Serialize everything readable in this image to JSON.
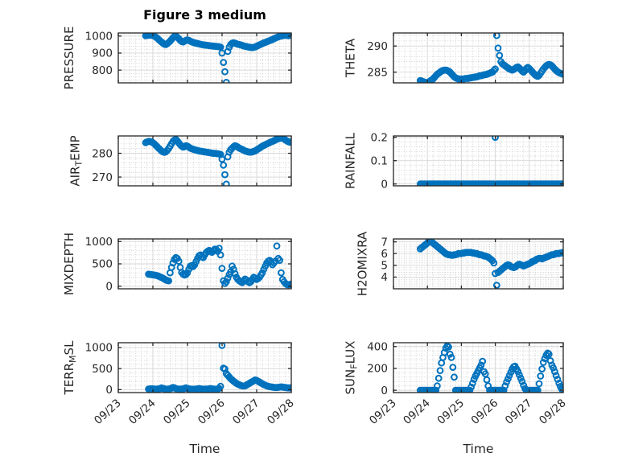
{
  "figure": {
    "background": "#ffffff",
    "marker_color": "#0072BD",
    "axis_color": "#262626",
    "major_grid_color": "#d6d6d6",
    "minor_grid_color": "#c6c6c6",
    "text_color": "#262626"
  },
  "chart_data": {
    "type": "scatter",
    "title": "Figure 3 medium",
    "xlabel": "Time",
    "marker": "o",
    "grid": true,
    "minor_grid": true,
    "x_axis": {
      "start_day": 0.79,
      "step_days": 0.0416667,
      "xlim": [
        0,
        5
      ],
      "ticks": [
        0,
        1,
        2,
        3,
        4,
        5
      ],
      "tick_labels": [
        "09/23",
        "09/24",
        "09/25",
        "09/26",
        "09/27",
        "09/28"
      ],
      "minor_divisions": 6
    },
    "plots": [
      {
        "id": "pressure",
        "ylabel_parts": [
          {
            "text": "PRESSURE"
          }
        ],
        "yticks": [
          800,
          900,
          1000
        ],
        "ylim": [
          725,
          1018
        ],
        "values": [
          1002,
          1004,
          1005,
          1006,
          1005,
          1004,
          1000,
          995,
          988,
          980,
          972,
          965,
          958,
          952,
          950,
          955,
          962,
          970,
          980,
          990,
          998,
          1000,
          993,
          985,
          975,
          968,
          965,
          970,
          975,
          978,
          975,
          970,
          966,
          963,
          960,
          958,
          956,
          954,
          952,
          950,
          948,
          947,
          946,
          945,
          944,
          943,
          942,
          941,
          940,
          939,
          938,
          937,
          935,
          900,
          845,
          790,
          728,
          910,
          935,
          950,
          958,
          960,
          958,
          955,
          952,
          950,
          948,
          945,
          942,
          940,
          938,
          936,
          935,
          933,
          932,
          934,
          936,
          940,
          944,
          948,
          952,
          956,
          960,
          963,
          966,
          970,
          973,
          976,
          980,
          984,
          988,
          992,
          995,
          998,
          1000,
          1002,
          1004,
          1005,
          1004,
          1002,
          1004,
          1006
        ]
      },
      {
        "id": "theta",
        "ylabel_parts": [
          {
            "text": "THETA"
          }
        ],
        "yticks": [
          285,
          290
        ],
        "ylim": [
          282.95,
          292.5
        ],
        "values": [
          283.4,
          283.3,
          283.2,
          283.1,
          283.0,
          283.0,
          283.1,
          283.3,
          283.5,
          283.7,
          284.0,
          284.3,
          284.6,
          284.8,
          285.0,
          285.2,
          285.3,
          285.4,
          285.4,
          285.3,
          285.2,
          285.0,
          284.7,
          284.4,
          284.1,
          283.9,
          283.8,
          283.7,
          283.7,
          283.7,
          283.7,
          283.7,
          283.8,
          283.8,
          283.8,
          283.9,
          283.9,
          284.0,
          284.0,
          284.1,
          284.1,
          284.2,
          284.3,
          284.3,
          284.4,
          284.5,
          284.5,
          284.6,
          284.7,
          284.8,
          284.9,
          285.0,
          285.3,
          285.6,
          292.0,
          289.6,
          288.2,
          287.0,
          286.6,
          286.4,
          286.2,
          286.0,
          285.8,
          285.6,
          285.5,
          285.4,
          285.5,
          285.7,
          285.9,
          286.0,
          285.8,
          285.5,
          285.2,
          285.0,
          285.3,
          285.7,
          285.9,
          285.7,
          285.4,
          285.1,
          284.8,
          284.5,
          284.3,
          284.2,
          284.4,
          284.8,
          285.2,
          285.6,
          285.9,
          286.2,
          286.4,
          286.5,
          286.4,
          286.2,
          285.9,
          285.6,
          285.3,
          285.1,
          284.9,
          284.8,
          284.7,
          284.6
        ]
      },
      {
        "id": "air-temp",
        "ylabel_parts": [
          {
            "text": "AIR"
          },
          {
            "text": "T",
            "sub": true
          },
          {
            "text": "EMP"
          }
        ],
        "yticks": [
          270,
          280
        ],
        "ylim": [
          266.3,
          287.3
        ],
        "values": [
          284.5,
          284.8,
          285.0,
          285.0,
          284.8,
          284.5,
          284.0,
          283.4,
          282.8,
          282.2,
          281.6,
          281.0,
          280.6,
          280.4,
          280.6,
          281.2,
          282.0,
          283.0,
          284.0,
          285.0,
          285.6,
          285.8,
          285.2,
          284.4,
          283.6,
          283.0,
          282.6,
          282.8,
          283.2,
          283.0,
          282.6,
          282.2,
          281.9,
          281.7,
          281.5,
          281.3,
          281.2,
          281.0,
          280.9,
          280.8,
          280.7,
          280.6,
          280.5,
          280.4,
          280.3,
          280.2,
          280.1,
          280.0,
          280.0,
          279.9,
          279.8,
          279.7,
          279.5,
          277.5,
          275.0,
          271.0,
          267.0,
          278.5,
          280.5,
          281.5,
          282.2,
          282.8,
          283.2,
          283.0,
          282.6,
          282.2,
          281.9,
          281.6,
          281.3,
          281.0,
          280.8,
          280.6,
          280.5,
          280.5,
          280.6,
          280.8,
          281.0,
          281.4,
          281.8,
          282.2,
          282.6,
          283.0,
          283.3,
          283.6,
          283.9,
          284.2,
          284.5,
          284.8,
          285.0,
          285.3,
          285.6,
          285.9,
          286.1,
          286.3,
          286.4,
          286.3,
          286.0,
          285.6,
          285.2,
          284.9,
          284.7,
          284.6
        ]
      },
      {
        "id": "rainfall",
        "ylabel_parts": [
          {
            "text": "RAINFALL"
          }
        ],
        "yticks": [
          0,
          0.1,
          0.2
        ],
        "ylim": [
          -0.008,
          0.206
        ],
        "values": [
          0,
          0,
          0,
          0,
          0,
          0,
          0,
          0,
          0,
          0,
          0,
          0,
          0,
          0,
          0,
          0,
          0,
          0,
          0,
          0,
          0,
          0,
          0,
          0,
          0,
          0,
          0,
          0,
          0,
          0,
          0,
          0,
          0,
          0,
          0,
          0,
          0,
          0,
          0,
          0,
          0,
          0,
          0,
          0,
          0,
          0,
          0,
          0,
          0,
          0,
          0,
          0,
          0,
          0.2,
          0,
          0,
          0,
          0,
          0,
          0,
          0,
          0,
          0,
          0,
          0,
          0,
          0,
          0,
          0,
          0,
          0,
          0,
          0,
          0,
          0,
          0,
          0,
          0,
          0,
          0,
          0,
          0,
          0,
          0,
          0,
          0,
          0,
          0,
          0,
          0,
          0,
          0,
          0,
          0,
          0,
          0,
          0,
          0,
          0,
          0,
          0,
          0
        ]
      },
      {
        "id": "mixdepth",
        "ylabel_parts": [
          {
            "text": "MIXDEPTH"
          }
        ],
        "yticks": [
          0,
          500,
          1000
        ],
        "ylim": [
          -58,
          1058
        ],
        "values": [
          null,
          null,
          270,
          265,
          260,
          255,
          250,
          245,
          235,
          225,
          210,
          195,
          180,
          160,
          140,
          130,
          120,
          300,
          420,
          520,
          600,
          640,
          620,
          560,
          420,
          310,
          270,
          250,
          260,
          300,
          380,
          450,
          460,
          440,
          480,
          550,
          620,
          680,
          700,
          660,
          640,
          700,
          750,
          780,
          800,
          780,
          760,
          800,
          830,
          820,
          780,
          850,
          700,
          400,
          120,
          60,
          100,
          180,
          260,
          320,
          450,
          380,
          280,
          200,
          150,
          120,
          100,
          80,
          120,
          160,
          140,
          100,
          80,
          100,
          150,
          200,
          180,
          150,
          170,
          200,
          250,
          300,
          380,
          450,
          520,
          560,
          580,
          540,
          480,
          520,
          560,
          900,
          620,
          580,
          300,
          150,
          100,
          60,
          40,
          30,
          40,
          50
        ]
      },
      {
        "id": "h2omixra",
        "ylabel_parts": [
          {
            "text": "H2OMIXRA"
          }
        ],
        "yticks": [
          4,
          5,
          6,
          7
        ],
        "ylim": [
          3.0,
          7.25
        ],
        "values": [
          6.4,
          6.5,
          6.6,
          6.7,
          6.8,
          6.9,
          7.0,
          7.1,
          7.0,
          6.9,
          6.8,
          6.7,
          6.6,
          6.5,
          6.4,
          6.3,
          6.2,
          6.1,
          6.0,
          5.95,
          5.9,
          5.9,
          5.85,
          5.85,
          5.9,
          5.9,
          5.95,
          6.0,
          6.0,
          6.0,
          6.05,
          6.05,
          6.1,
          6.1,
          6.1,
          6.1,
          6.1,
          6.05,
          6.05,
          6.0,
          6.0,
          5.95,
          5.9,
          5.9,
          5.85,
          5.8,
          5.8,
          5.75,
          5.7,
          5.6,
          5.5,
          5.4,
          5.2,
          4.3,
          3.3,
          4.4,
          4.5,
          4.6,
          4.7,
          4.8,
          4.9,
          5.0,
          5.05,
          5.0,
          4.9,
          4.85,
          4.8,
          4.85,
          4.95,
          5.05,
          5.1,
          5.05,
          5.0,
          4.95,
          5.0,
          5.05,
          5.1,
          5.15,
          5.2,
          5.3,
          5.35,
          5.4,
          5.5,
          5.55,
          5.6,
          5.6,
          5.55,
          5.6,
          5.65,
          5.7,
          5.75,
          5.8,
          5.85,
          5.9,
          5.9,
          5.95,
          6.0,
          6.0,
          6.0,
          6.05,
          6.05,
          6.1
        ]
      },
      {
        "id": "terr-msl",
        "ylabel_parts": [
          {
            "text": "TERR"
          },
          {
            "text": "M",
            "sub": true
          },
          {
            "text": "SL"
          }
        ],
        "yticks": [
          0,
          500,
          1000
        ],
        "ylim": [
          -70,
          1115
        ],
        "values": [
          null,
          null,
          15,
          18,
          20,
          20,
          15,
          10,
          12,
          18,
          25,
          40,
          30,
          20,
          15,
          10,
          12,
          20,
          35,
          50,
          40,
          25,
          15,
          10,
          12,
          15,
          20,
          30,
          40,
          30,
          20,
          15,
          10,
          8,
          10,
          15,
          20,
          25,
          20,
          15,
          10,
          10,
          12,
          15,
          20,
          25,
          20,
          15,
          10,
          10,
          15,
          30,
          80,
          1050,
          510,
          490,
          380,
          340,
          300,
          260,
          230,
          200,
          175,
          150,
          130,
          115,
          100,
          90,
          85,
          90,
          110,
          130,
          150,
          170,
          190,
          210,
          230,
          220,
          200,
          180,
          160,
          140,
          120,
          105,
          90,
          80,
          70,
          65,
          60,
          55,
          50,
          50,
          55,
          60,
          65,
          60,
          55,
          50,
          45,
          40,
          40,
          45
        ]
      },
      {
        "id": "sun-flux",
        "ylabel_parts": [
          {
            "text": "SUN"
          },
          {
            "text": "F",
            "sub": true
          },
          {
            "text": "LUX"
          }
        ],
        "yticks": [
          0,
          200,
          400
        ],
        "ylim": [
          -21,
          435
        ],
        "values": [
          0,
          0,
          0,
          0,
          0,
          0,
          0,
          0,
          0,
          0,
          0,
          0,
          40,
          110,
          180,
          250,
          300,
          345,
          385,
          405,
          395,
          330,
          300,
          210,
          120,
          0,
          0,
          0,
          0,
          0,
          0,
          0,
          0,
          0,
          0,
          0,
          30,
          65,
          100,
          130,
          155,
          180,
          205,
          230,
          265,
          170,
          150,
          95,
          40,
          0,
          0,
          0,
          0,
          0,
          0,
          0,
          0,
          0,
          0,
          0,
          40,
          75,
          105,
          135,
          165,
          195,
          215,
          220,
          195,
          170,
          140,
          110,
          80,
          45,
          15,
          0,
          0,
          0,
          0,
          0,
          0,
          0,
          0,
          0,
          60,
          130,
          195,
          255,
          290,
          320,
          340,
          330,
          270,
          230,
          205,
          170,
          135,
          100,
          65,
          35,
          10,
          0
        ]
      }
    ]
  }
}
